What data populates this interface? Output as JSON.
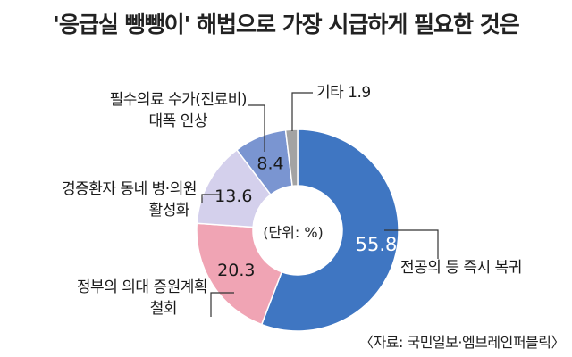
{
  "title": "'응급실 뺑뺑이' 해법으로 가장 시급하게 필요한 것은",
  "unit_label": "(단위: %)",
  "source": "〈자료: 국민일보·엠브레인퍼블릭〉",
  "colors": [
    "#3f76c2",
    "#f0a4b4",
    "#d4d0ec",
    "#7a95d1",
    "#a3a3a3"
  ],
  "chart_data": {
    "type": "pie",
    "donut": true,
    "categories": [
      "전공의 등 즉시 복귀",
      "정부의 의대 증원계획 철회",
      "경증환자 동네 병·의원 활성화",
      "필수의료 수가(진료비) 대폭 인상",
      "기타"
    ],
    "values": [
      55.8,
      20.3,
      13.6,
      8.4,
      1.9
    ],
    "value_labels": [
      "55.8",
      "20.3",
      "13.6",
      "8.4",
      "1.9"
    ],
    "unit": "%"
  },
  "labels": {
    "s0": [
      "전공의 등 즉시 복귀"
    ],
    "s1": [
      "정부의 의대 증원계획",
      "철회"
    ],
    "s2": [
      "경증환자 동네 병·의원",
      "활성화"
    ],
    "s3": [
      "필수의료 수가(진료비)",
      "대폭 인상"
    ],
    "s4": [
      "기타 1.9"
    ]
  }
}
